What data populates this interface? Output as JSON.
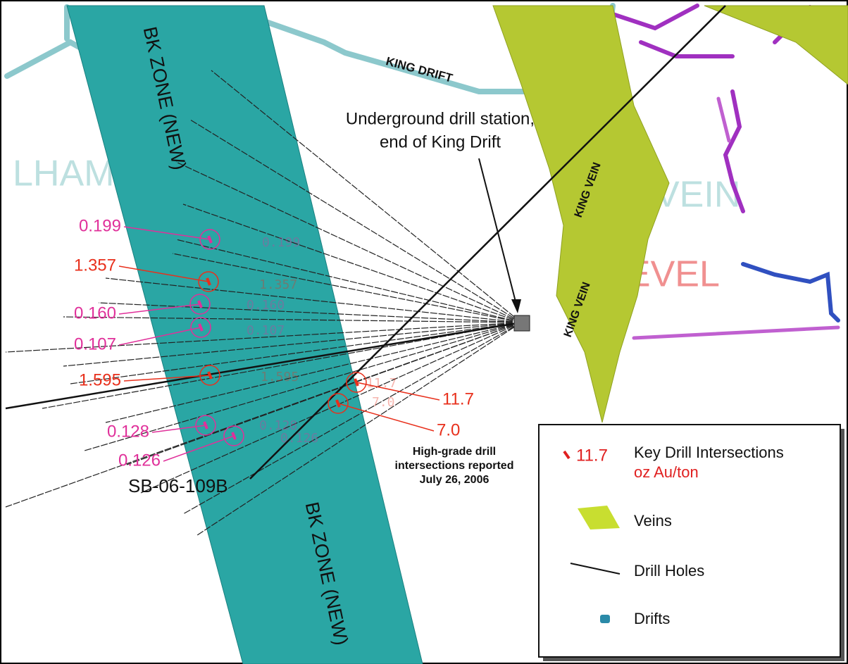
{
  "labels": {
    "zone_top": "BK ZONE (NEW)",
    "zone_bottom": "BK ZONE (NEW)",
    "king_drift": "KING DRIFT",
    "vein_upper": "KING VEIN",
    "vein_lower": "KING VEIN",
    "background": [
      "LHAMBRA",
      "VEIN",
      "LEVEL"
    ]
  },
  "callout_station": [
    "Underground drill station,",
    "end of King Drift"
  ],
  "intersections": [
    "0.199",
    "1.357",
    "0.160",
    "0.107",
    "1.595",
    "0.128",
    "0.126",
    "11.7",
    "7.0"
  ],
  "callout_highgrade": [
    "High-grade drill",
    "intersections reported",
    "July 26, 2006"
  ],
  "drill_hole": "SB-06-109B",
  "legend": {
    "sample": "11.7",
    "intersections": "Key Drill Intersections",
    "units": "oz Au/ton",
    "veins": "Veins",
    "drill_holes": "Drill Holes",
    "drifts": "Drifts"
  }
}
